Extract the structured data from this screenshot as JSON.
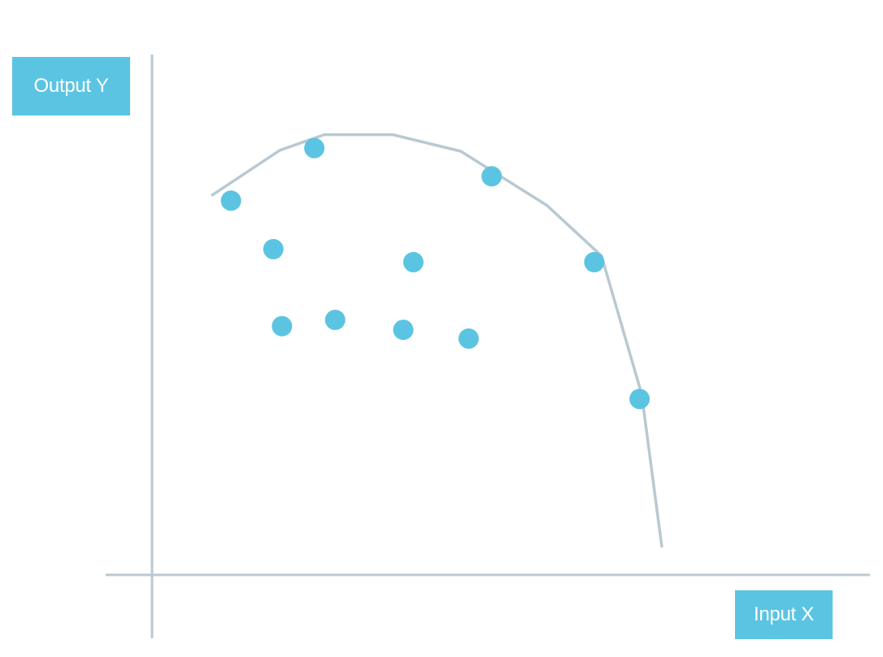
{
  "chart_data": {
    "type": "scatter",
    "title": "",
    "xlabel": "Input X",
    "ylabel": "Output Y",
    "xlim": [
      0,
      100
    ],
    "ylim": [
      0,
      100
    ],
    "grid": false,
    "colors": {
      "points": "#5bc4e2",
      "frontier": "#b9c9d1",
      "axes": "#b9c9d1",
      "label_box": "#5bc4e2",
      "label_text": "#ffffff"
    },
    "points": [
      {
        "x": 11.0,
        "y": 71.9
      },
      {
        "x": 22.6,
        "y": 82.0
      },
      {
        "x": 16.9,
        "y": 62.6
      },
      {
        "x": 18.1,
        "y": 47.8
      },
      {
        "x": 25.5,
        "y": 49.0
      },
      {
        "x": 36.4,
        "y": 60.1
      },
      {
        "x": 35.0,
        "y": 47.1
      },
      {
        "x": 44.1,
        "y": 45.4
      },
      {
        "x": 47.3,
        "y": 76.6
      },
      {
        "x": 61.6,
        "y": 60.1
      },
      {
        "x": 67.9,
        "y": 33.8
      }
    ],
    "frontier": [
      {
        "x": 8.4,
        "y": 73.0
      },
      {
        "x": 17.8,
        "y": 81.6
      },
      {
        "x": 24.0,
        "y": 84.6
      },
      {
        "x": 33.5,
        "y": 84.6
      },
      {
        "x": 43.0,
        "y": 81.4
      },
      {
        "x": 55.0,
        "y": 71.0
      },
      {
        "x": 62.6,
        "y": 61.3
      },
      {
        "x": 68.2,
        "y": 34.7
      },
      {
        "x": 71.0,
        "y": 5.5
      }
    ]
  }
}
